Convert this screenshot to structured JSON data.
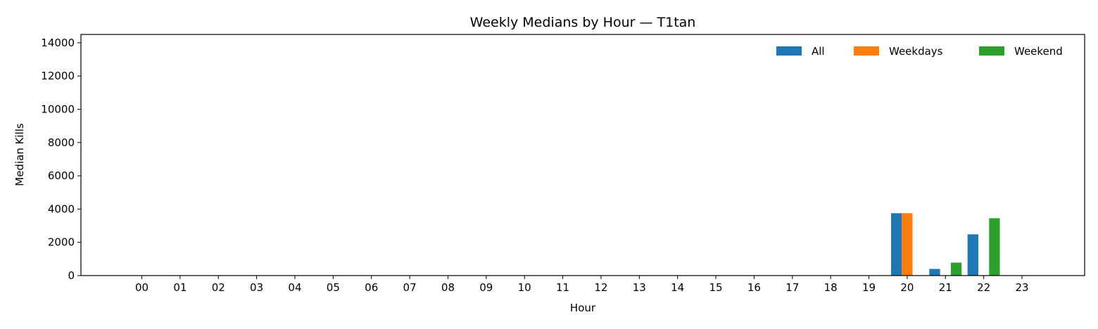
{
  "chart_data": {
    "type": "bar",
    "title": "Weekly Medians by Hour — T1tan",
    "xlabel": "Hour",
    "ylabel": "Median Kills",
    "ylim": [
      0,
      14500
    ],
    "yticks": [
      0,
      2000,
      4000,
      6000,
      8000,
      10000,
      12000,
      14000
    ],
    "categories": [
      "00",
      "01",
      "02",
      "03",
      "04",
      "05",
      "06",
      "07",
      "08",
      "09",
      "10",
      "11",
      "12",
      "13",
      "14",
      "15",
      "16",
      "17",
      "18",
      "19",
      "20",
      "21",
      "22",
      "23"
    ],
    "legend_position": "top-right",
    "grid": false,
    "series": [
      {
        "name": "All",
        "color": "#1f77b4",
        "values": [
          0,
          0,
          0,
          0,
          0,
          0,
          0,
          0,
          0,
          0,
          0,
          0,
          0,
          0,
          0,
          0,
          0,
          0,
          0,
          0,
          3750,
          400,
          2480,
          0
        ]
      },
      {
        "name": "Weekdays",
        "color": "#ff7f0e",
        "values": [
          0,
          0,
          0,
          0,
          0,
          0,
          0,
          0,
          0,
          0,
          0,
          0,
          0,
          0,
          0,
          0,
          0,
          0,
          0,
          0,
          3750,
          0,
          0,
          0
        ]
      },
      {
        "name": "Weekend",
        "color": "#2ca02c",
        "values": [
          0,
          0,
          0,
          0,
          0,
          0,
          0,
          0,
          0,
          0,
          0,
          0,
          0,
          0,
          0,
          0,
          0,
          0,
          0,
          0,
          0,
          780,
          3450,
          0
        ]
      }
    ]
  }
}
